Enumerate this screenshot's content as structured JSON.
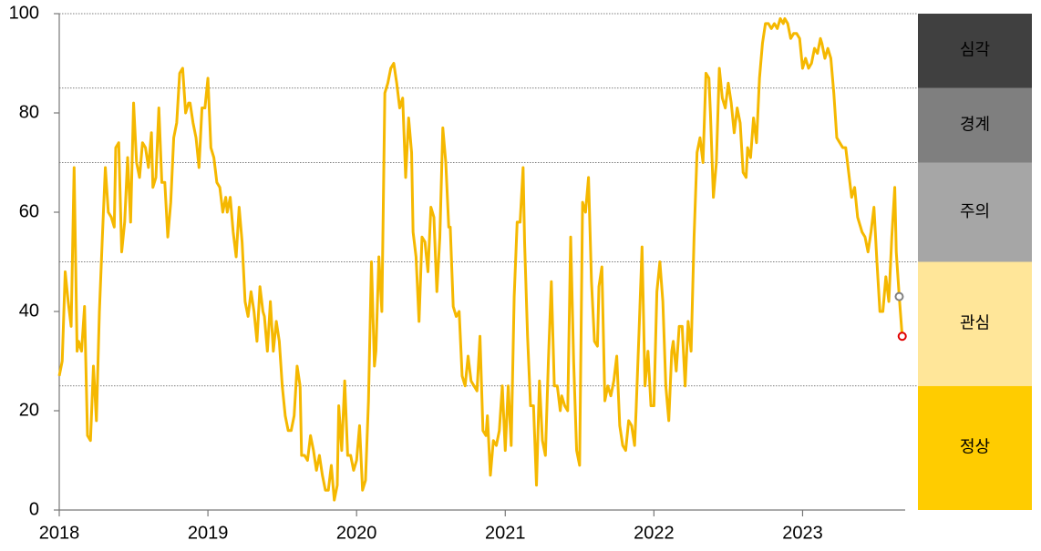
{
  "chart_data": {
    "type": "line",
    "color": "#f5b800",
    "end_marker_colors": [
      "#808080",
      "#e00000"
    ],
    "xlim": [
      2018,
      2023.69
    ],
    "xticks": [
      2018,
      2019,
      2020,
      2021,
      2022,
      2023
    ],
    "ylim": [
      0,
      100
    ],
    "yticks": [
      0,
      20,
      40,
      60,
      80,
      100
    ],
    "bands": [
      {
        "label": "정상",
        "range": [
          0,
          25
        ],
        "color": "#ffcc00"
      },
      {
        "label": "관심",
        "range": [
          25,
          50
        ],
        "color": "#ffe699"
      },
      {
        "label": "주의",
        "range": [
          50,
          70
        ],
        "color": "#a6a6a6"
      },
      {
        "label": "경계",
        "range": [
          70,
          85
        ],
        "color": "#7f7f7f"
      },
      {
        "label": "심각",
        "range": [
          85,
          100
        ],
        "color": "#404040"
      }
    ],
    "x": [
      2018.0,
      2018.02,
      2018.04,
      2018.06,
      2018.08,
      2018.1,
      2018.12,
      2018.13,
      2018.15,
      2018.17,
      2018.19,
      2018.21,
      2018.23,
      2018.25,
      2018.27,
      2018.29,
      2018.31,
      2018.33,
      2018.35,
      2018.37,
      2018.38,
      2018.4,
      2018.42,
      2018.44,
      2018.46,
      2018.48,
      2018.5,
      2018.52,
      2018.54,
      2018.56,
      2018.58,
      2018.6,
      2018.62,
      2018.63,
      2018.65,
      2018.67,
      2018.69,
      2018.71,
      2018.73,
      2018.75,
      2018.77,
      2018.79,
      2018.81,
      2018.83,
      2018.85,
      2018.87,
      2018.88,
      2018.9,
      2018.92,
      2018.94,
      2018.96,
      2018.98,
      2019.0,
      2019.02,
      2019.04,
      2019.06,
      2019.08,
      2019.1,
      2019.12,
      2019.13,
      2019.15,
      2019.17,
      2019.19,
      2019.21,
      2019.23,
      2019.25,
      2019.27,
      2019.29,
      2019.31,
      2019.33,
      2019.35,
      2019.37,
      2019.38,
      2019.4,
      2019.42,
      2019.44,
      2019.46,
      2019.48,
      2019.5,
      2019.52,
      2019.54,
      2019.56,
      2019.58,
      2019.6,
      2019.62,
      2019.63,
      2019.65,
      2019.67,
      2019.69,
      2019.71,
      2019.73,
      2019.75,
      2019.77,
      2019.79,
      2019.81,
      2019.83,
      2019.85,
      2019.87,
      2019.88,
      2019.9,
      2019.92,
      2019.94,
      2019.96,
      2019.98,
      2020.0,
      2020.02,
      2020.04,
      2020.06,
      2020.08,
      2020.1,
      2020.12,
      2020.13,
      2020.15,
      2020.17,
      2020.19,
      2020.21,
      2020.23,
      2020.25,
      2020.27,
      2020.29,
      2020.31,
      2020.33,
      2020.35,
      2020.37,
      2020.38,
      2020.4,
      2020.42,
      2020.44,
      2020.46,
      2020.48,
      2020.5,
      2020.52,
      2020.54,
      2020.56,
      2020.58,
      2020.6,
      2020.62,
      2020.63,
      2020.65,
      2020.67,
      2020.69,
      2020.71,
      2020.73,
      2020.75,
      2020.77,
      2020.79,
      2020.81,
      2020.83,
      2020.85,
      2020.87,
      2020.88,
      2020.9,
      2020.92,
      2020.94,
      2020.96,
      2020.98,
      2021.0,
      2021.02,
      2021.04,
      2021.06,
      2021.08,
      2021.1,
      2021.12,
      2021.13,
      2021.15,
      2021.17,
      2021.19,
      2021.21,
      2021.23,
      2021.25,
      2021.27,
      2021.29,
      2021.31,
      2021.33,
      2021.35,
      2021.37,
      2021.38,
      2021.4,
      2021.42,
      2021.44,
      2021.46,
      2021.48,
      2021.5,
      2021.52,
      2021.54,
      2021.56,
      2021.58,
      2021.6,
      2021.62,
      2021.63,
      2021.65,
      2021.67,
      2021.69,
      2021.71,
      2021.73,
      2021.75,
      2021.77,
      2021.79,
      2021.81,
      2021.83,
      2021.85,
      2021.87,
      2021.88,
      2021.9,
      2021.92,
      2021.94,
      2021.96,
      2021.98,
      2022.0,
      2022.02,
      2022.04,
      2022.06,
      2022.08,
      2022.1,
      2022.12,
      2022.13,
      2022.15,
      2022.17,
      2022.19,
      2022.21,
      2022.23,
      2022.25,
      2022.27,
      2022.29,
      2022.31,
      2022.33,
      2022.35,
      2022.37,
      2022.38,
      2022.4,
      2022.42,
      2022.44,
      2022.46,
      2022.48,
      2022.5,
      2022.52,
      2022.54,
      2022.56,
      2022.58,
      2022.6,
      2022.62,
      2022.63,
      2022.65,
      2022.67,
      2022.69,
      2022.71,
      2022.73,
      2022.75,
      2022.77,
      2022.79,
      2022.81,
      2022.83,
      2022.85,
      2022.87,
      2022.88,
      2022.9,
      2022.92,
      2022.94,
      2022.96,
      2022.98,
      2023.0,
      2023.02,
      2023.04,
      2023.06,
      2023.08,
      2023.1,
      2023.12,
      2023.13,
      2023.15,
      2023.17,
      2023.19,
      2023.21,
      2023.23,
      2023.25,
      2023.27,
      2023.29,
      2023.31,
      2023.33,
      2023.35,
      2023.37,
      2023.38,
      2023.4,
      2023.42,
      2023.44,
      2023.46,
      2023.48,
      2023.5,
      2023.52,
      2023.54,
      2023.56,
      2023.58,
      2023.6,
      2023.62,
      2023.63,
      2023.65,
      2023.67
    ],
    "values": [
      27,
      30,
      48,
      42,
      37,
      69,
      32,
      34,
      32,
      41,
      15,
      14,
      29,
      18,
      40,
      55,
      69,
      60,
      59,
      57,
      73,
      74,
      52,
      58,
      71,
      58,
      82,
      70,
      67,
      74,
      73,
      69,
      76,
      65,
      67,
      81,
      66,
      66,
      55,
      62,
      75,
      78,
      88,
      89,
      80,
      82,
      82,
      78,
      75,
      69,
      81,
      81,
      87,
      73,
      71,
      66,
      65,
      60,
      63,
      60,
      63,
      56,
      51,
      61,
      54,
      42,
      39,
      44,
      40,
      34,
      45,
      40,
      39,
      32,
      42,
      32,
      38,
      34,
      25,
      19,
      16,
      16,
      19,
      29,
      25,
      11,
      11,
      10,
      15,
      12,
      8,
      11,
      7,
      4,
      4,
      9,
      2,
      5,
      21,
      12,
      26,
      11,
      11,
      8,
      10,
      17,
      4,
      6,
      22,
      50,
      29,
      32,
      51,
      40,
      84,
      86,
      89,
      90,
      86,
      81,
      83,
      67,
      79,
      72,
      56,
      51,
      38,
      55,
      54,
      48,
      61,
      59,
      44,
      55,
      77,
      70,
      57,
      57,
      41,
      39,
      40,
      27,
      25,
      31,
      26,
      25,
      24,
      35,
      16,
      15,
      19,
      7,
      14,
      13,
      16,
      25,
      12,
      25,
      13,
      43,
      58,
      58,
      69,
      54,
      35,
      21,
      21,
      5,
      26,
      14,
      11,
      30,
      46,
      25,
      25,
      20,
      23,
      21,
      20,
      55,
      30,
      12,
      9,
      62,
      60,
      67,
      46,
      34,
      33,
      45,
      49,
      22,
      25,
      23,
      26,
      31,
      17,
      13,
      12,
      18,
      17,
      13,
      20,
      36,
      53,
      25,
      32,
      21,
      21,
      44,
      50,
      42,
      25,
      18,
      32,
      34,
      28,
      37,
      37,
      25,
      38,
      32,
      55,
      72,
      75,
      70,
      88,
      87,
      80,
      63,
      70,
      89,
      83,
      81,
      86,
      82,
      76,
      81,
      78,
      68,
      67,
      73,
      71,
      79,
      74,
      87,
      94,
      98,
      98,
      97,
      98,
      97,
      99,
      98,
      99,
      98,
      95,
      96,
      96,
      95,
      89,
      91,
      89,
      90,
      93,
      92,
      95,
      94,
      91,
      93,
      91,
      84,
      75,
      74,
      73,
      73,
      68,
      63,
      65,
      59,
      58,
      56,
      55,
      52,
      56,
      61,
      50,
      40,
      40,
      47,
      42,
      55,
      65,
      52,
      43,
      35
    ]
  }
}
